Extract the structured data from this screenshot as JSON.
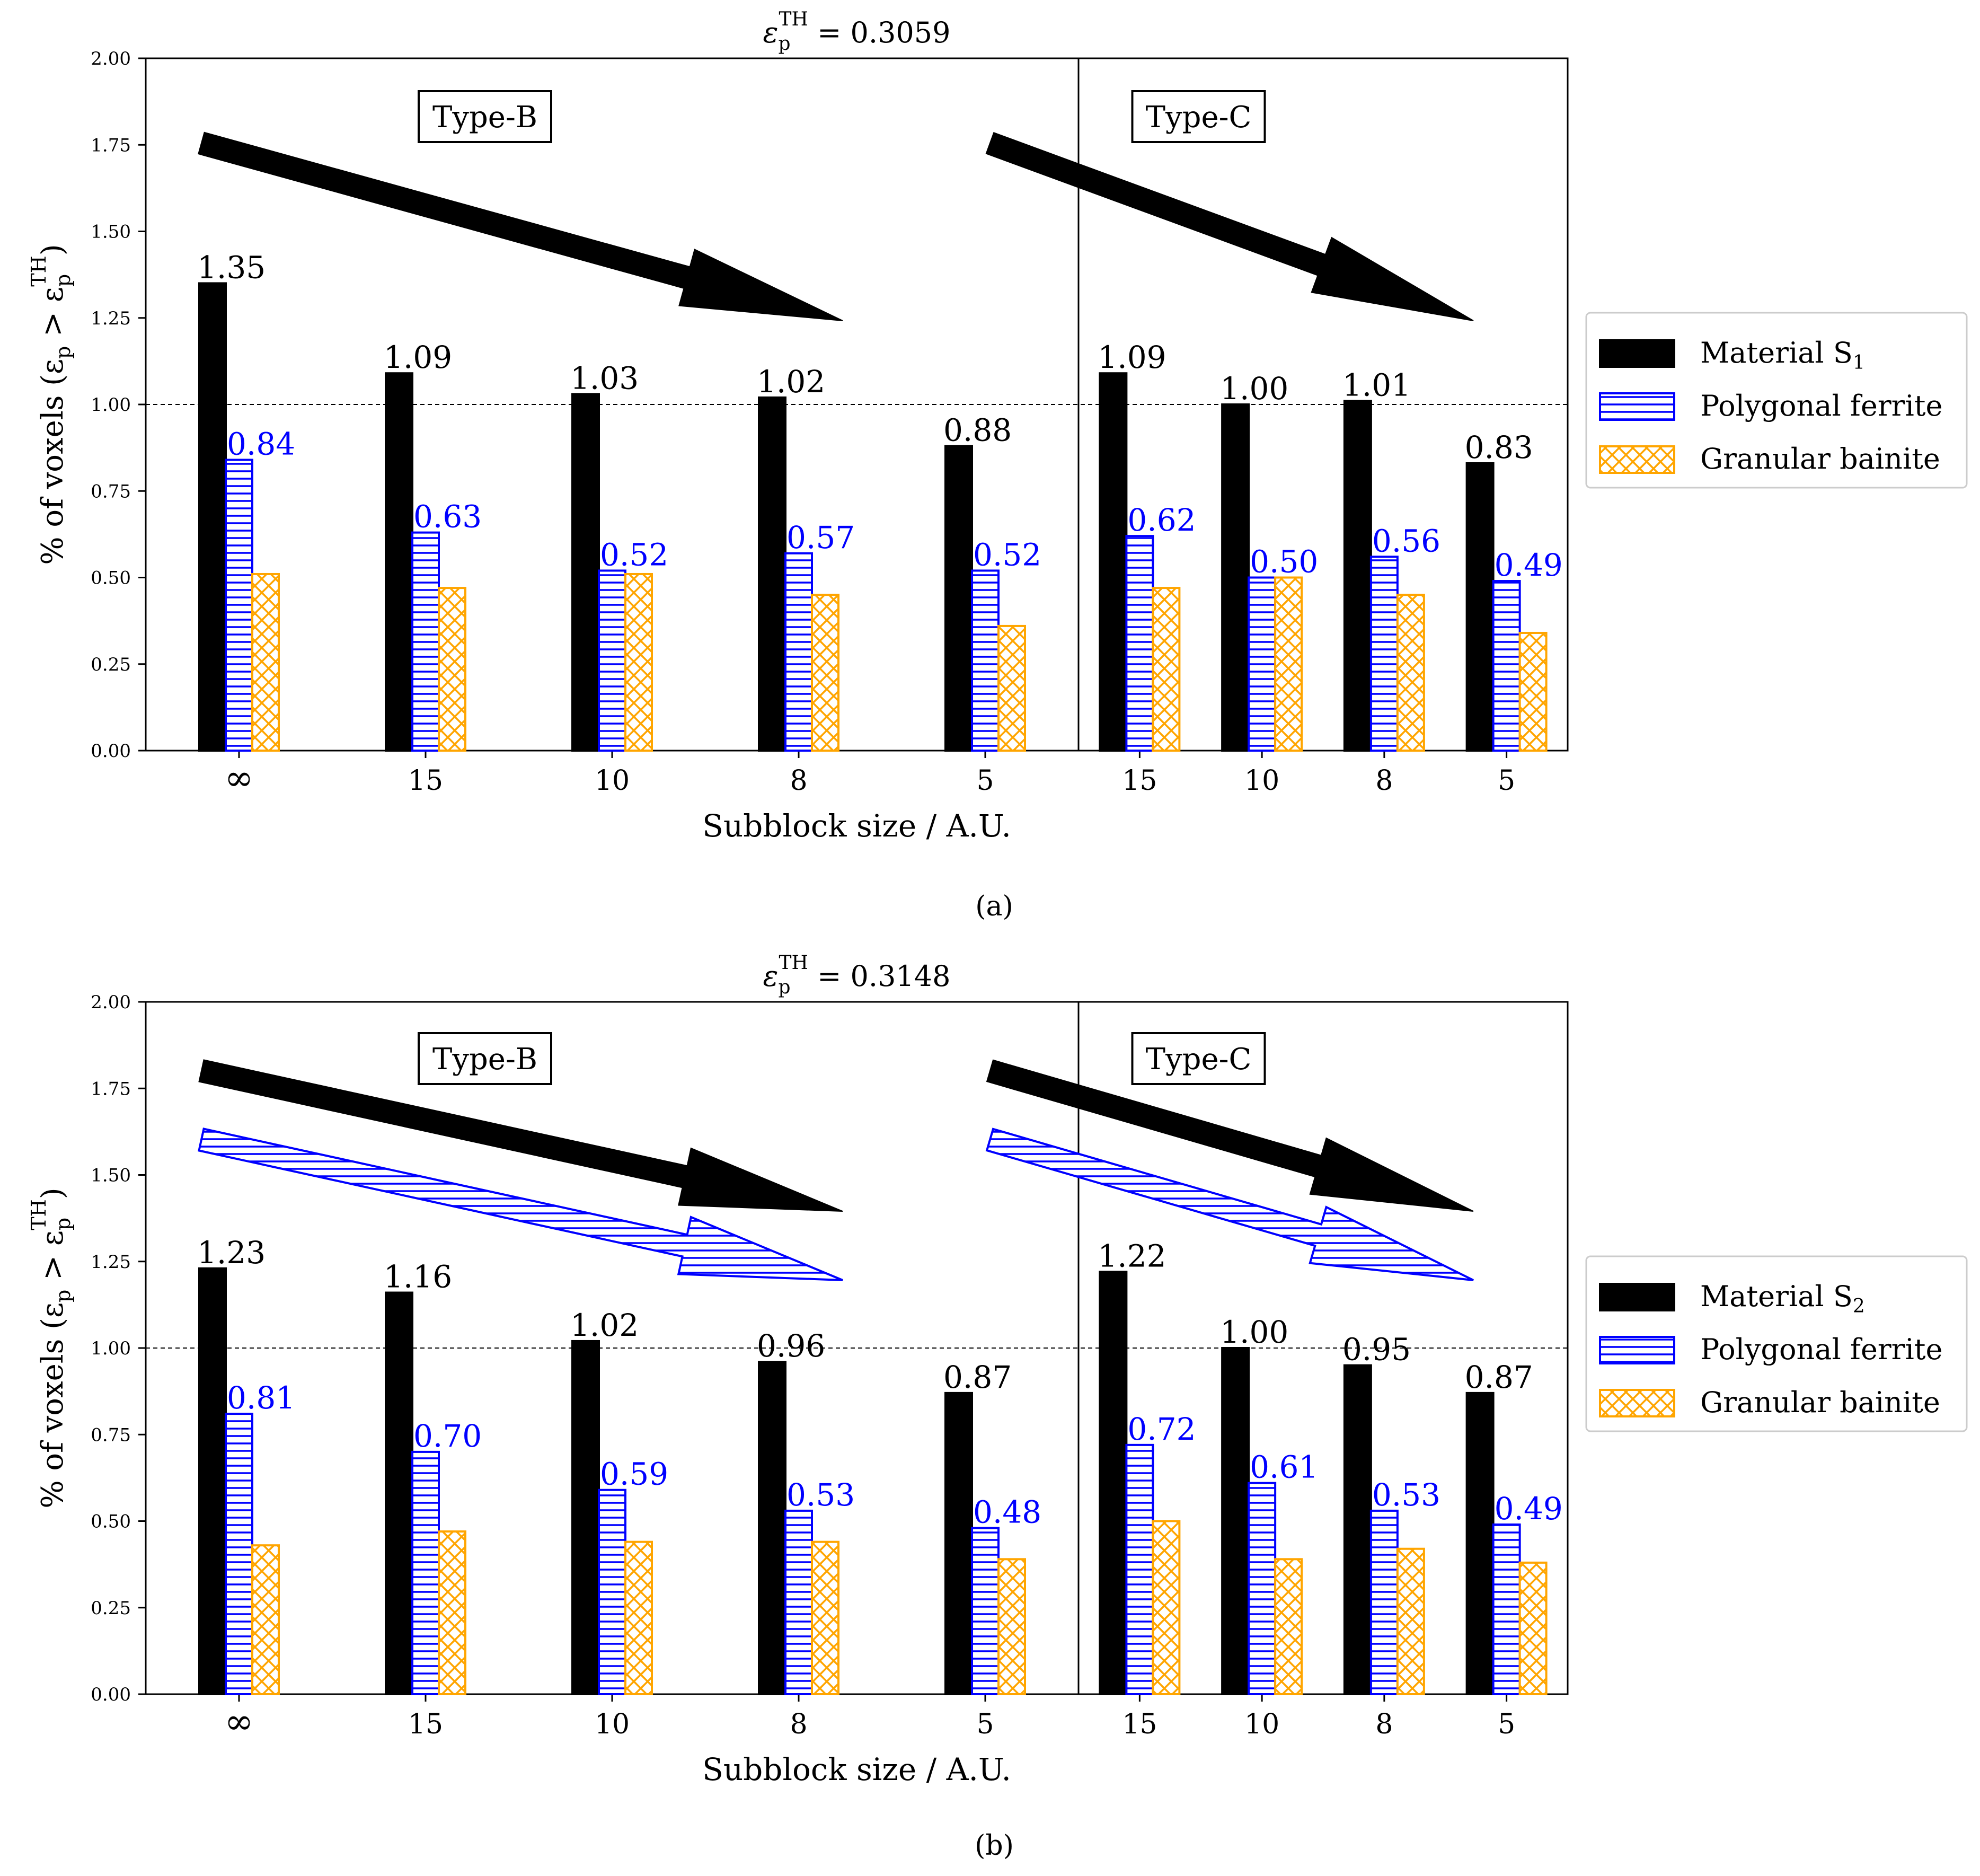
{
  "figure": {
    "panel_labels": [
      "(a)",
      "(b)"
    ]
  },
  "colors": {
    "material": "#000000",
    "polygonal_ferrite": "#0000ff",
    "granular_bainite": "#ffa500"
  },
  "chart_data": [
    {
      "type": "bar",
      "title_symbol": "ε",
      "title_sub": "p",
      "title_sup": "TH",
      "title_rest": " = 0.3059",
      "xlabel": "Subblock size / A.U.",
      "ylabel_main": "% of voxels (ε",
      "ylabel_sub": "p",
      "ylabel_mid": " > ε",
      "ylabel_sub2": "p",
      "ylabel_sup2": "TH",
      "ylabel_end": ")",
      "ylim": [
        0,
        2.0
      ],
      "yticks": [
        "0.00",
        "0.25",
        "0.50",
        "0.75",
        "1.00",
        "1.25",
        "1.50",
        "1.75",
        "2.00"
      ],
      "ytick_values": [
        0,
        0.25,
        0.5,
        0.75,
        1.0,
        1.25,
        1.5,
        1.75,
        2.0
      ],
      "reference_line": 1.0,
      "categories": [
        "∞",
        "15",
        "10",
        "8",
        "5",
        "15",
        "10",
        "8",
        "5"
      ],
      "groups": [
        "Type-B",
        "Type-C"
      ],
      "group_sizes": [
        5,
        4
      ],
      "series": [
        {
          "name": "Material S",
          "name_sub": "1",
          "style": "solid",
          "values": [
            1.35,
            1.09,
            1.03,
            1.02,
            0.88,
            1.09,
            1.0,
            1.01,
            0.83
          ],
          "labels": [
            "1.35",
            "1.09",
            "1.03",
            "1.02",
            "0.88",
            "1.09",
            "1.00",
            "1.01",
            "0.83"
          ]
        },
        {
          "name": "Polygonal ferrite",
          "style": "hlines",
          "values": [
            0.84,
            0.63,
            0.52,
            0.57,
            0.52,
            0.62,
            0.5,
            0.56,
            0.49
          ],
          "labels": [
            "0.84",
            "0.63",
            "0.52",
            "0.57",
            "0.52",
            "0.62",
            "0.50",
            "0.56",
            "0.49"
          ]
        },
        {
          "name": "Granular bainite",
          "style": "crosshatch",
          "values": [
            0.51,
            0.47,
            0.51,
            0.45,
            0.36,
            0.47,
            0.5,
            0.45,
            0.34
          ]
        }
      ],
      "legend_position": "right"
    },
    {
      "type": "bar",
      "title_symbol": "ε",
      "title_sub": "p",
      "title_sup": "TH",
      "title_rest": " = 0.3148",
      "xlabel": "Subblock size / A.U.",
      "ylabel_main": "% of voxels (ε",
      "ylabel_sub": "p",
      "ylabel_mid": " > ε",
      "ylabel_sub2": "p",
      "ylabel_sup2": "TH",
      "ylabel_end": ")",
      "ylim": [
        0,
        2.0
      ],
      "yticks": [
        "0.00",
        "0.25",
        "0.50",
        "0.75",
        "1.00",
        "1.25",
        "1.50",
        "1.75",
        "2.00"
      ],
      "ytick_values": [
        0,
        0.25,
        0.5,
        0.75,
        1.0,
        1.25,
        1.5,
        1.75,
        2.0
      ],
      "reference_line": 1.0,
      "categories": [
        "∞",
        "15",
        "10",
        "8",
        "5",
        "15",
        "10",
        "8",
        "5"
      ],
      "groups": [
        "Type-B",
        "Type-C"
      ],
      "group_sizes": [
        5,
        4
      ],
      "series": [
        {
          "name": "Material S",
          "name_sub": "2",
          "style": "solid",
          "values": [
            1.23,
            1.16,
            1.02,
            0.96,
            0.87,
            1.22,
            1.0,
            0.95,
            0.87
          ],
          "labels": [
            "1.23",
            "1.16",
            "1.02",
            "0.96",
            "0.87",
            "1.22",
            "1.00",
            "0.95",
            "0.87"
          ]
        },
        {
          "name": "Polygonal ferrite",
          "style": "hlines",
          "values": [
            0.81,
            0.7,
            0.59,
            0.53,
            0.48,
            0.72,
            0.61,
            0.53,
            0.49
          ],
          "labels": [
            "0.81",
            "0.70",
            "0.59",
            "0.53",
            "0.48",
            "0.72",
            "0.61",
            "0.53",
            "0.49"
          ]
        },
        {
          "name": "Granular bainite",
          "style": "crosshatch",
          "values": [
            0.43,
            0.47,
            0.44,
            0.44,
            0.39,
            0.5,
            0.39,
            0.42,
            0.38
          ]
        }
      ],
      "legend_position": "right"
    }
  ]
}
